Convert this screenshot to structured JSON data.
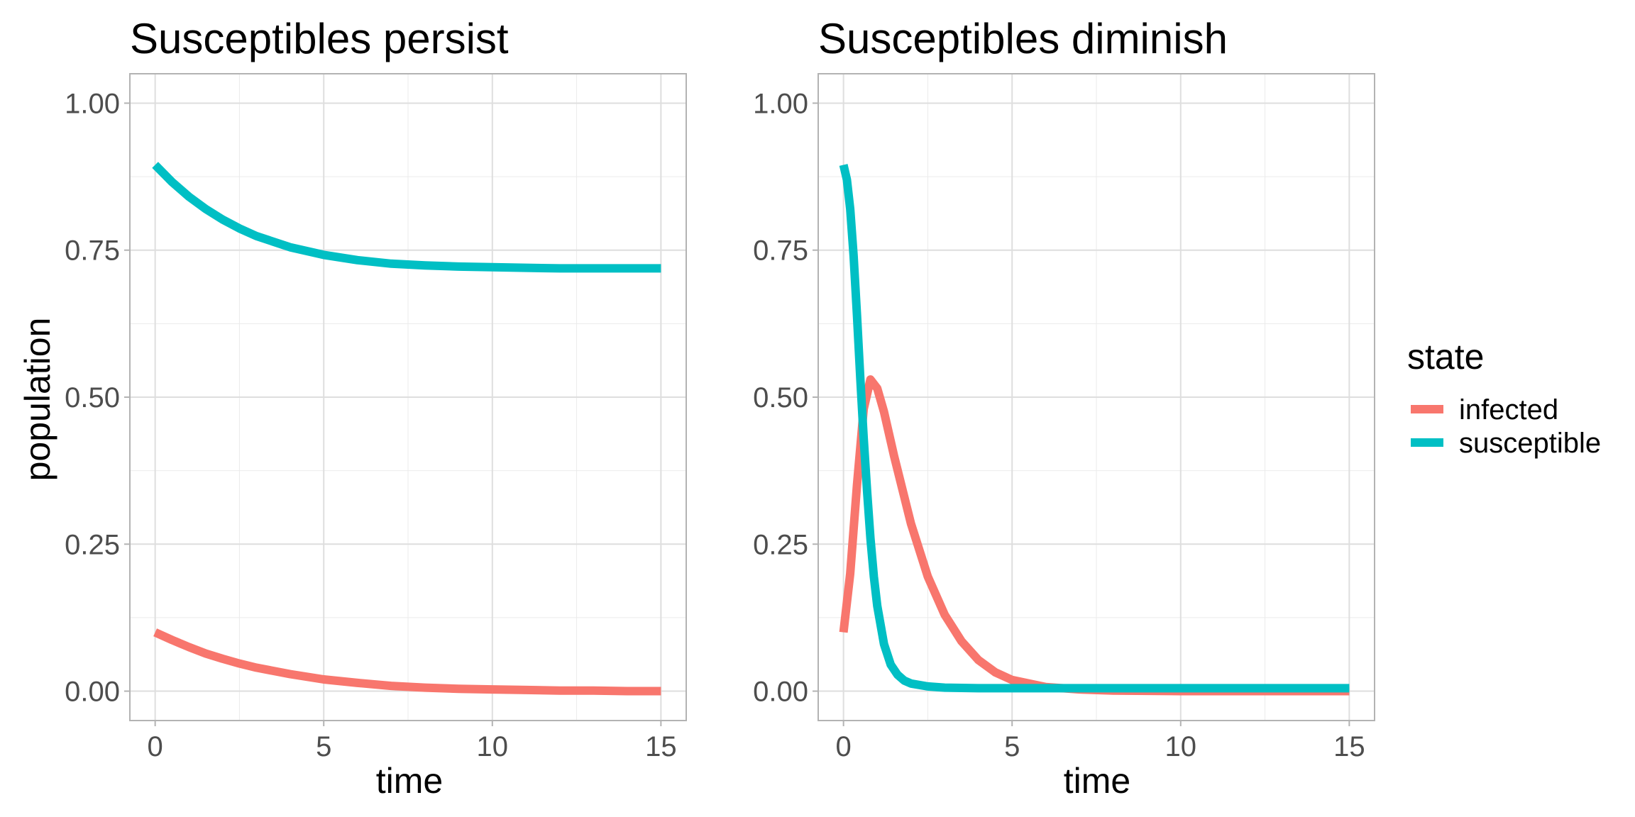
{
  "legend": {
    "title": "state",
    "position": "right",
    "items": [
      {
        "label": "infected",
        "color": "#F8766D"
      },
      {
        "label": "susceptible",
        "color": "#00BFC4"
      }
    ]
  },
  "chart_data": [
    {
      "type": "line",
      "title": "Susceptibles persist",
      "xlabel": "time",
      "ylabel": "population",
      "xlim": [
        -0.75,
        15.75
      ],
      "ylim": [
        -0.05,
        1.05
      ],
      "x_ticks": [
        0,
        5,
        10,
        15
      ],
      "y_ticks": [
        0.0,
        0.25,
        0.5,
        0.75,
        1.0
      ],
      "x_tick_labels": [
        "0",
        "5",
        "10",
        "15"
      ],
      "y_tick_labels": [
        "0.00",
        "0.25",
        "0.50",
        "0.75",
        "1.00"
      ],
      "grid": true,
      "series": [
        {
          "name": "infected",
          "color": "#F8766D",
          "x": [
            0,
            0.5,
            1,
            1.5,
            2,
            2.5,
            3,
            4,
            5,
            6,
            7,
            8,
            9,
            10,
            11,
            12,
            13,
            14,
            15
          ],
          "y": [
            0.1,
            0.087,
            0.075,
            0.064,
            0.055,
            0.047,
            0.04,
            0.029,
            0.02,
            0.014,
            0.009,
            0.006,
            0.004,
            0.003,
            0.002,
            0.001,
            0.001,
            0.0,
            0.0
          ]
        },
        {
          "name": "susceptible",
          "color": "#00BFC4",
          "x": [
            0,
            0.5,
            1,
            1.5,
            2,
            2.5,
            3,
            4,
            5,
            6,
            7,
            8,
            9,
            10,
            11,
            12,
            13,
            14,
            15
          ],
          "y": [
            0.895,
            0.866,
            0.841,
            0.82,
            0.802,
            0.787,
            0.774,
            0.755,
            0.742,
            0.733,
            0.727,
            0.724,
            0.722,
            0.721,
            0.72,
            0.719,
            0.719,
            0.719,
            0.719
          ]
        }
      ]
    },
    {
      "type": "line",
      "title": "Susceptibles diminish",
      "xlabel": "time",
      "ylabel": "",
      "xlim": [
        -0.75,
        15.75
      ],
      "ylim": [
        -0.05,
        1.05
      ],
      "x_ticks": [
        0,
        5,
        10,
        15
      ],
      "y_ticks": [
        0.0,
        0.25,
        0.5,
        0.75,
        1.0
      ],
      "x_tick_labels": [
        "0",
        "5",
        "10",
        "15"
      ],
      "y_tick_labels": [
        "0.00",
        "0.25",
        "0.50",
        "0.75",
        "1.00"
      ],
      "grid": true,
      "series": [
        {
          "name": "infected",
          "color": "#F8766D",
          "x": [
            0,
            0.2,
            0.4,
            0.6,
            0.8,
            1.0,
            1.2,
            1.5,
            2,
            2.5,
            3,
            3.5,
            4,
            4.5,
            5,
            6,
            7,
            8,
            10,
            12,
            15
          ],
          "y": [
            0.1,
            0.2,
            0.35,
            0.48,
            0.53,
            0.515,
            0.475,
            0.4,
            0.285,
            0.195,
            0.13,
            0.085,
            0.053,
            0.032,
            0.019,
            0.007,
            0.003,
            0.001,
            0.0,
            0.0,
            0.0
          ]
        },
        {
          "name": "susceptible",
          "color": "#00BFC4",
          "x": [
            0,
            0.1,
            0.2,
            0.3,
            0.4,
            0.5,
            0.6,
            0.7,
            0.8,
            0.9,
            1.0,
            1.2,
            1.4,
            1.6,
            1.8,
            2,
            2.5,
            3,
            4,
            5,
            7,
            10,
            15
          ],
          "y": [
            0.895,
            0.87,
            0.82,
            0.74,
            0.64,
            0.53,
            0.43,
            0.34,
            0.26,
            0.195,
            0.145,
            0.08,
            0.045,
            0.028,
            0.018,
            0.013,
            0.008,
            0.006,
            0.005,
            0.005,
            0.005,
            0.005,
            0.005
          ]
        }
      ]
    }
  ]
}
